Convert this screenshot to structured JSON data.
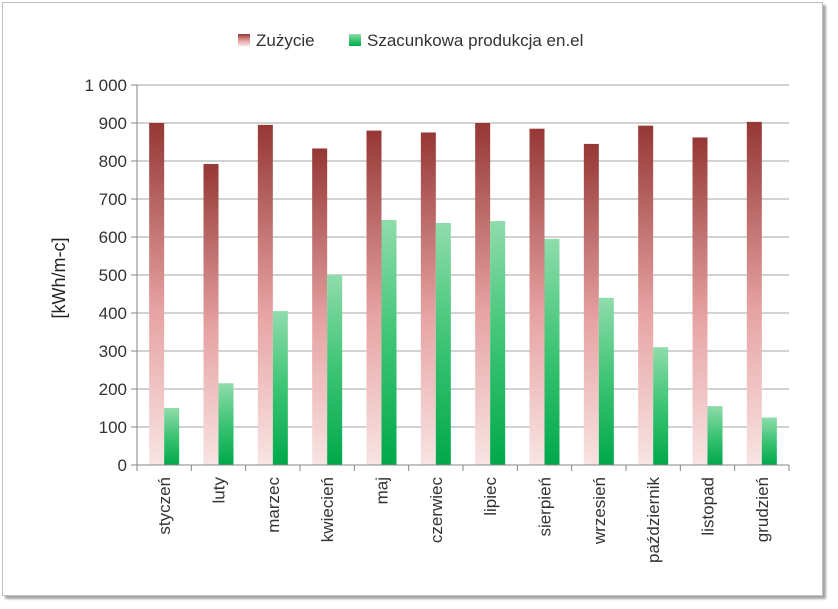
{
  "chart_data": {
    "type": "bar",
    "categories": [
      "styczeń",
      "luty",
      "marzec",
      "kwiecień",
      "maj",
      "czerwiec",
      "lipiec",
      "sierpień",
      "wrzesień",
      "październik",
      "listopad",
      "grudzień"
    ],
    "series": [
      {
        "name": "Zużycie",
        "values": [
          900,
          792,
          895,
          833,
          880,
          875,
          900,
          885,
          845,
          893,
          862,
          903
        ],
        "color": "#953735"
      },
      {
        "name": "Szacunkowa produkcja en.el",
        "values": [
          150,
          215,
          405,
          500,
          645,
          637,
          642,
          595,
          440,
          310,
          155,
          125
        ],
        "color": "#00b050"
      }
    ],
    "ylabel": "[kWh/m-c]",
    "ylim": [
      0,
      1000
    ],
    "yticks": [
      0,
      100,
      200,
      300,
      400,
      500,
      600,
      700,
      800,
      900,
      1000
    ],
    "ytick_labels": [
      "0",
      "100",
      "200",
      "300",
      "400",
      "500",
      "600",
      "700",
      "800",
      "900",
      "1 000"
    ],
    "grid": true,
    "legend_position": "top"
  }
}
